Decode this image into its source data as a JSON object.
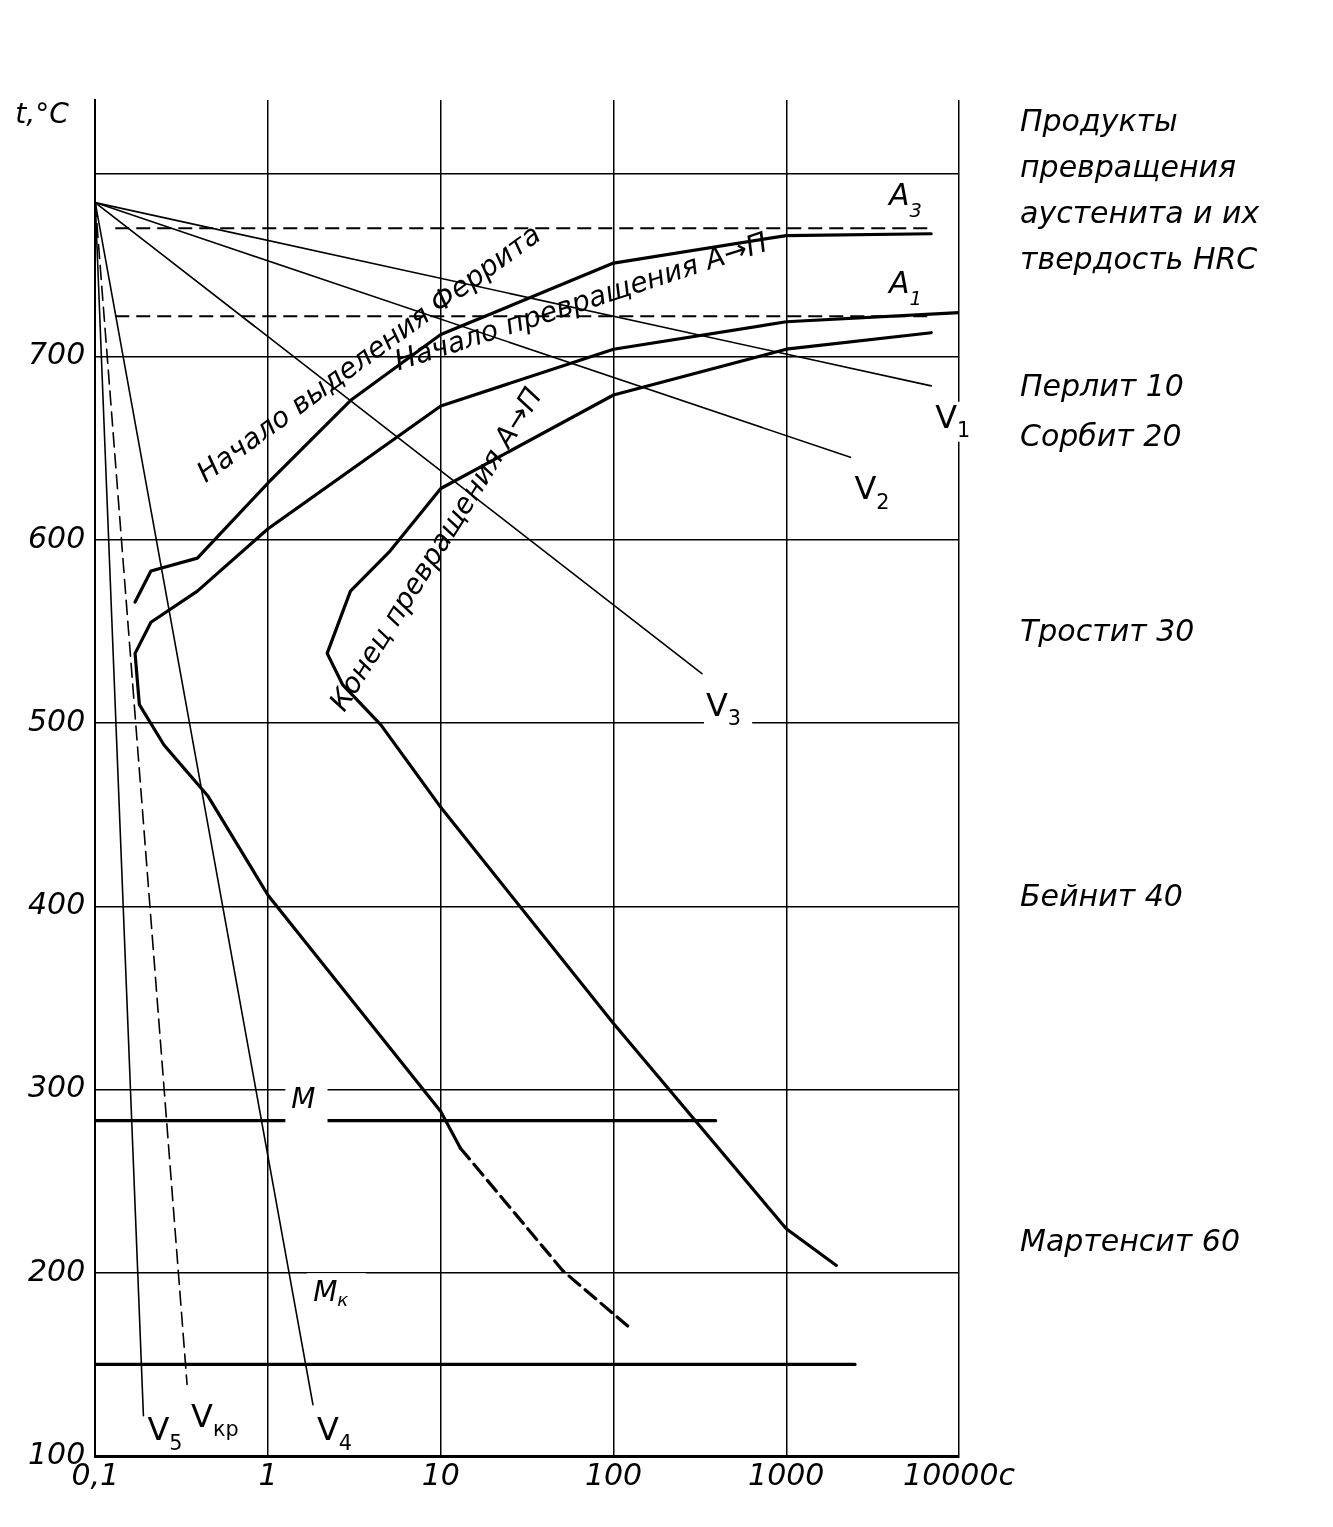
{
  "chart_data": {
    "type": "line",
    "ylabel": "t,°C",
    "log": "x",
    "grid": true,
    "legend": false,
    "marker": "none",
    "xlim": [
      0.1,
      10000
    ],
    "xticks": [
      {
        "value": 0.1,
        "label": "0,1"
      },
      1,
      10,
      100,
      1000,
      {
        "value": 10000,
        "label": "10000с"
      }
    ],
    "ylim": [
      100,
      840
    ],
    "yticks": [
      100,
      200,
      300,
      400,
      500,
      600,
      700,
      {
        "value": 800,
        "label": null
      }
    ],
    "ref_lines": [
      {
        "axis": "y",
        "value": 770,
        "label": "A$_{3}$",
        "line_style": "dashed",
        "color": "#000000"
      },
      {
        "axis": "y",
        "value": 722,
        "label": "A$_{1}$",
        "line_style": "dashed",
        "color": "#000000"
      }
    ],
    "series": [
      {
        "color": "#000000",
        "x": [
          0.17,
          0.21,
          0.39,
          1,
          3,
          10,
          100,
          1000,
          6900
        ],
        "values": [
          566,
          583,
          590,
          631,
          676,
          712,
          751,
          766,
          767
        ]
      },
      {
        "color": "#000000",
        "x": [
          13,
          10,
          1,
          0.45,
          0.25,
          0.18,
          0.17,
          0.21,
          0.39,
          1,
          10,
          100,
          1000,
          10000
        ],
        "values": [
          268,
          288,
          406,
          460,
          488,
          510,
          538,
          555,
          572,
          606,
          673,
          704,
          719,
          724
        ]
      },
      {
        "color": "#000000",
        "line_style": "dashed",
        "x": [
          13,
          51,
          124
        ],
        "values": [
          268,
          201,
          170
        ]
      },
      {
        "color": "#000000",
        "x": [
          1950,
          1000,
          100,
          10,
          4.5,
          2.7,
          2.2,
          3,
          5.1,
          10,
          100,
          1000,
          6900
        ],
        "values": [
          204,
          224,
          336,
          454,
          499,
          521,
          538,
          572,
          594,
          628,
          679,
          704,
          713
        ]
      },
      {
        "color": "#000000",
        "x": [
          0.1,
          390
        ],
        "values": [
          283,
          283
        ]
      },
      {
        "color": "#000000",
        "x": [
          0.1,
          2500
        ],
        "values": [
          150,
          150
        ]
      },
      {
        "name": "V$_{1}$",
        "color": "#000000",
        "x": [
          0.1,
          6900
        ],
        "values": [
          784,
          684
        ]
      },
      {
        "name": "V$_{2}$",
        "color": "#000000",
        "x": [
          0.1,
          2350
        ],
        "values": [
          784,
          645
        ]
      },
      {
        "name": "V$_{3}$",
        "color": "#000000",
        "x": [
          0.1,
          325
        ],
        "values": [
          784,
          527
        ]
      },
      {
        "name": "V$_{4}$",
        "color": "#000000",
        "x": [
          0.1,
          1.82
        ],
        "values": [
          784,
          128
        ]
      },
      {
        "name": "V$_{кр}$",
        "color": "#000000",
        "line_style": "dashed",
        "x": [
          0.1,
          0.34
        ],
        "values": [
          784,
          139
        ]
      },
      {
        "name": "V$_{5}$",
        "color": "#000000",
        "x": [
          0.1,
          0.19
        ],
        "values": [
          784,
          122
        ]
      }
    ],
    "annotations": [
      "Начало выделения Феррита",
      "Начало превращения А→П",
      "Конец превращения А→П",
      "M",
      "M$_{к}$",
      "Продукты превращения аустенита и их твердость HRC",
      "Перлит 10",
      "Сорбит 20",
      "Тростит 30",
      "Бейнит 40",
      "Мартенсит 60"
    ]
  }
}
